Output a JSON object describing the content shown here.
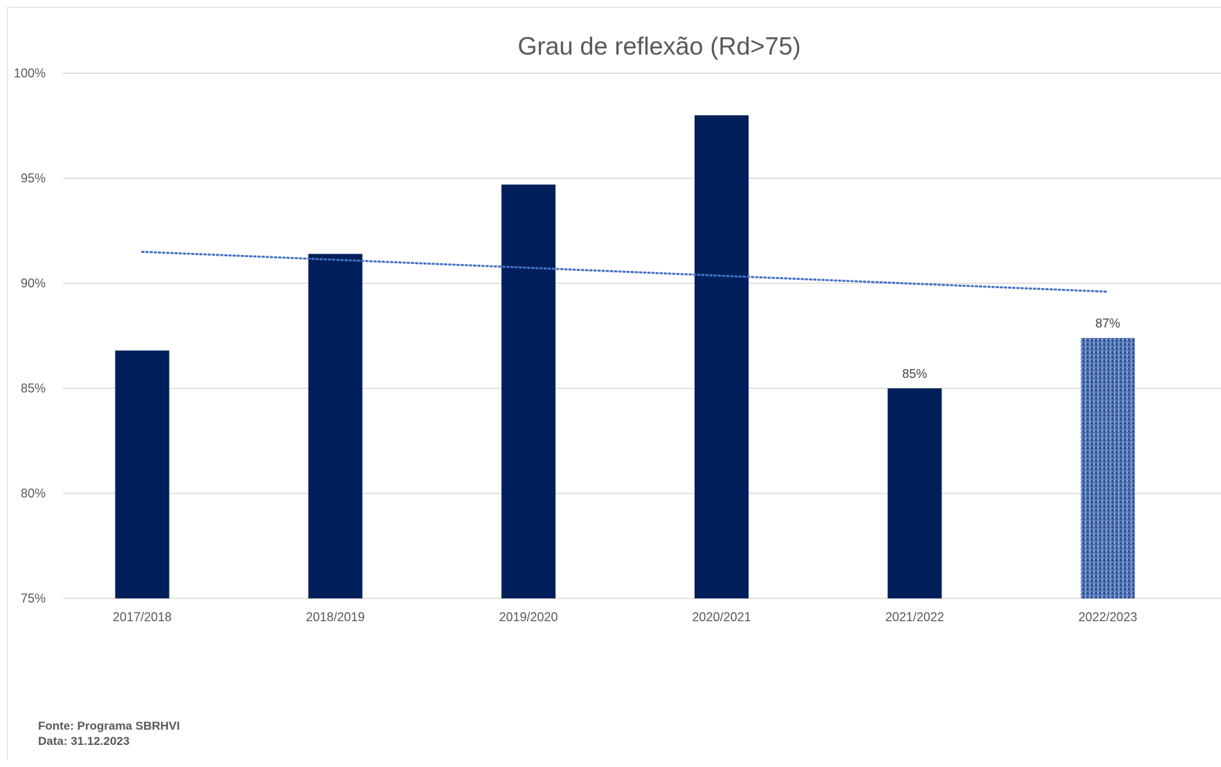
{
  "chart_data": {
    "type": "bar",
    "title": "Grau de reflexão (Rd>75)",
    "categories": [
      "2017/2018",
      "2018/2019",
      "2019/2020",
      "2020/2021",
      "2021/2022",
      "2022/2023"
    ],
    "values": [
      86.8,
      91.4,
      94.7,
      98.0,
      85.0,
      87.4
    ],
    "data_labels": [
      "",
      "",
      "",
      "",
      "85%",
      "87%"
    ],
    "ylim": [
      75,
      100
    ],
    "yticks": [
      75,
      80,
      85,
      90,
      95,
      100
    ],
    "ytick_labels": [
      "75%",
      "80%",
      "85%",
      "90%",
      "95%",
      "100%"
    ],
    "grid": true,
    "trendline": {
      "type": "linear",
      "style": "dotted",
      "start": 91.5,
      "end": 89.6
    },
    "colors": {
      "bar": "#001f5b",
      "highlight_bar": "#4a6fb0",
      "trendline": "#4472c4",
      "grid": "#d9d9d9"
    },
    "highlight_index": 5
  },
  "footer": {
    "source": "Fonte: Programa SBRHVI",
    "date": "Data: 31.12.2023"
  }
}
